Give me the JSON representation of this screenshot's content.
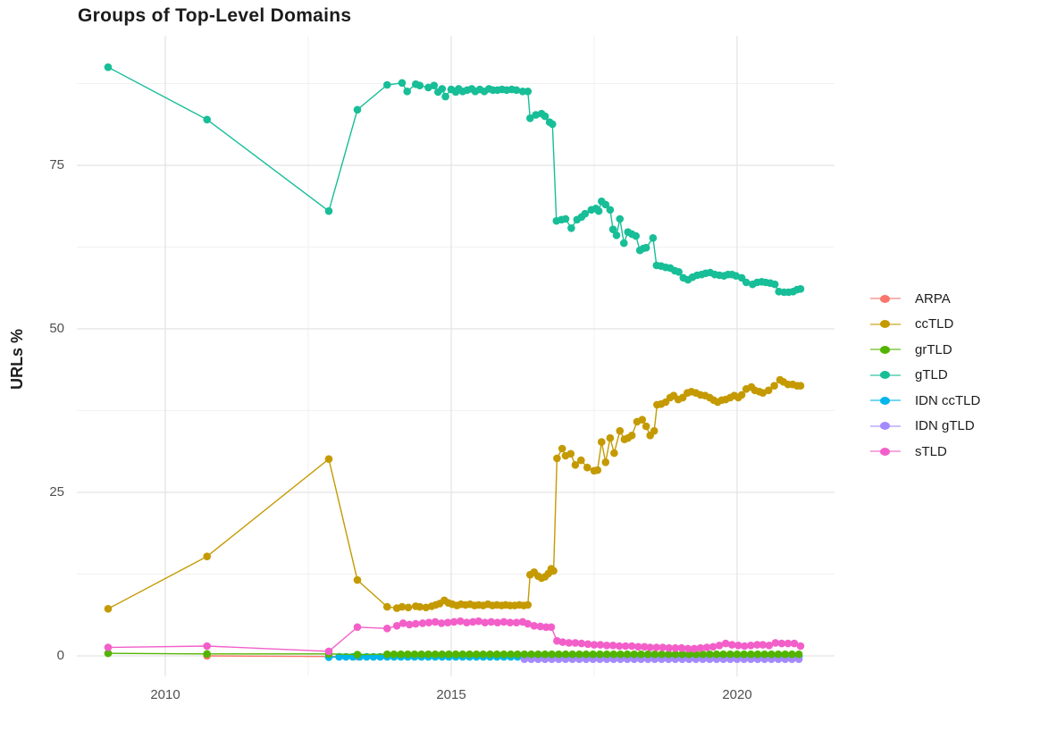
{
  "title": "Groups of Top-Level Domains",
  "y_axis": {
    "title": "URLs %",
    "ticks": [
      {
        "label": "0",
        "value": 0
      },
      {
        "label": "25",
        "value": 25
      },
      {
        "label": "50",
        "value": 50
      },
      {
        "label": "75",
        "value": 75
      }
    ],
    "minor": [
      12.5,
      37.5,
      62.5,
      87.5
    ]
  },
  "x_axis": {
    "ticks": [
      {
        "label": "2010",
        "value": 2010
      },
      {
        "label": "2015",
        "value": 2015
      },
      {
        "label": "2020",
        "value": 2020
      }
    ],
    "minor": [
      2012.5,
      2017.5
    ]
  },
  "legend": {
    "position": "right",
    "items": [
      {
        "label": "ARPA"
      },
      {
        "label": "ccTLD"
      },
      {
        "label": "grTLD"
      },
      {
        "label": "gTLD"
      },
      {
        "label": "IDN ccTLD"
      },
      {
        "label": "IDN gTLD"
      },
      {
        "label": "sTLD"
      }
    ]
  },
  "colors": {
    "grid_major": "#e3e3e3",
    "grid_minor": "#f1f1f1",
    "text_dark": "#1c1c1c",
    "text_tick": "#4f4f4f"
  },
  "chart_data": {
    "type": "line",
    "title": "Groups of Top-Level Domains",
    "xlabel": "",
    "ylabel": "URLs %",
    "xlim": [
      2008.4,
      2021.7
    ],
    "ylim": [
      -3,
      94
    ],
    "grid": true,
    "legend_position": "right",
    "draw_order": [
      "ARPA",
      "IDN ccTLD",
      "IDN gTLD",
      "grTLD",
      "ccTLD",
      "gTLD",
      "sTLD"
    ],
    "series": [
      {
        "name": "ARPA",
        "color": "#F8766D",
        "points": [
          [
            2010.73,
            0.0
          ],
          [
            2012.86,
            -0.1
          ],
          [
            2013.36,
            -0.1
          ],
          [
            2013.88,
            -0.1
          ]
        ]
      },
      {
        "name": "ccTLD",
        "color": "#C49A00",
        "points": [
          [
            2009.0,
            7.2
          ],
          [
            2010.73,
            15.2
          ],
          [
            2012.86,
            30.1
          ],
          [
            2013.36,
            11.6
          ],
          [
            2013.88,
            7.5
          ],
          [
            2014.05,
            7.3
          ],
          [
            2014.14,
            7.5
          ],
          [
            2014.25,
            7.4
          ],
          [
            2014.38,
            7.6
          ],
          [
            2014.45,
            7.5
          ],
          [
            2014.56,
            7.4
          ],
          [
            2014.66,
            7.6
          ],
          [
            2014.73,
            7.8
          ],
          [
            2014.8,
            8.0
          ],
          [
            2014.88,
            8.5
          ],
          [
            2014.95,
            8.1
          ],
          [
            2015.02,
            7.9
          ],
          [
            2015.1,
            7.7
          ],
          [
            2015.17,
            7.9
          ],
          [
            2015.25,
            7.8
          ],
          [
            2015.33,
            7.9
          ],
          [
            2015.41,
            7.7
          ],
          [
            2015.48,
            7.8
          ],
          [
            2015.56,
            7.7
          ],
          [
            2015.64,
            7.9
          ],
          [
            2015.72,
            7.7
          ],
          [
            2015.8,
            7.8
          ],
          [
            2015.88,
            7.7
          ],
          [
            2015.95,
            7.8
          ],
          [
            2016.03,
            7.7
          ],
          [
            2016.11,
            7.7
          ],
          [
            2016.19,
            7.8
          ],
          [
            2016.27,
            7.7
          ],
          [
            2016.34,
            7.8
          ],
          [
            2016.38,
            12.4
          ],
          [
            2016.45,
            12.8
          ],
          [
            2016.52,
            12.2
          ],
          [
            2016.58,
            11.9
          ],
          [
            2016.64,
            12.1
          ],
          [
            2016.7,
            12.6
          ],
          [
            2016.75,
            13.3
          ],
          [
            2016.79,
            13.0
          ],
          [
            2016.85,
            30.2
          ],
          [
            2016.94,
            31.7
          ],
          [
            2017.0,
            30.6
          ],
          [
            2017.09,
            30.9
          ],
          [
            2017.17,
            29.2
          ],
          [
            2017.27,
            29.9
          ],
          [
            2017.38,
            28.8
          ],
          [
            2017.5,
            28.3
          ],
          [
            2017.56,
            28.4
          ],
          [
            2017.63,
            32.7
          ],
          [
            2017.7,
            29.6
          ],
          [
            2017.78,
            33.3
          ],
          [
            2017.85,
            31.0
          ],
          [
            2017.95,
            34.4
          ],
          [
            2018.03,
            33.1
          ],
          [
            2018.09,
            33.3
          ],
          [
            2018.16,
            33.7
          ],
          [
            2018.25,
            35.8
          ],
          [
            2018.34,
            36.1
          ],
          [
            2018.41,
            35.1
          ],
          [
            2018.48,
            33.7
          ],
          [
            2018.55,
            34.4
          ],
          [
            2018.6,
            38.4
          ],
          [
            2018.67,
            38.5
          ],
          [
            2018.75,
            38.8
          ],
          [
            2018.83,
            39.5
          ],
          [
            2018.89,
            39.8
          ],
          [
            2018.97,
            39.2
          ],
          [
            2019.05,
            39.5
          ],
          [
            2019.13,
            40.2
          ],
          [
            2019.2,
            40.4
          ],
          [
            2019.28,
            40.2
          ],
          [
            2019.36,
            39.9
          ],
          [
            2019.44,
            39.8
          ],
          [
            2019.52,
            39.5
          ],
          [
            2019.59,
            39.1
          ],
          [
            2019.66,
            38.8
          ],
          [
            2019.73,
            39.1
          ],
          [
            2019.8,
            39.2
          ],
          [
            2019.88,
            39.5
          ],
          [
            2019.95,
            39.8
          ],
          [
            2020.02,
            39.5
          ],
          [
            2020.08,
            39.9
          ],
          [
            2020.16,
            40.8
          ],
          [
            2020.25,
            41.1
          ],
          [
            2020.31,
            40.6
          ],
          [
            2020.39,
            40.4
          ],
          [
            2020.45,
            40.2
          ],
          [
            2020.55,
            40.6
          ],
          [
            2020.65,
            41.3
          ],
          [
            2020.75,
            42.2
          ],
          [
            2020.81,
            41.9
          ],
          [
            2020.89,
            41.5
          ],
          [
            2020.97,
            41.5
          ],
          [
            2021.05,
            41.3
          ],
          [
            2021.11,
            41.3
          ]
        ]
      },
      {
        "name": "grTLD",
        "color": "#53B400",
        "points": [
          [
            2009.0,
            0.4
          ],
          [
            2010.73,
            0.3
          ],
          [
            2012.86,
            0.3
          ],
          [
            2013.36,
            0.2
          ]
        ],
        "run": {
          "from": 2013.88,
          "to": 2021.1,
          "step": 0.12,
          "value": 0.25
        }
      },
      {
        "name": "gTLD",
        "color": "#17BE97",
        "points": [
          [
            2009.0,
            90.0
          ],
          [
            2010.73,
            82.0
          ],
          [
            2012.86,
            68.0
          ],
          [
            2013.36,
            83.5
          ],
          [
            2013.88,
            87.3
          ],
          [
            2014.14,
            87.6
          ],
          [
            2014.23,
            86.3
          ],
          [
            2014.38,
            87.4
          ],
          [
            2014.45,
            87.2
          ],
          [
            2014.6,
            86.9
          ],
          [
            2014.7,
            87.2
          ],
          [
            2014.77,
            86.2
          ],
          [
            2014.84,
            86.7
          ],
          [
            2014.9,
            85.5
          ],
          [
            2015.0,
            86.6
          ],
          [
            2015.08,
            86.2
          ],
          [
            2015.13,
            86.7
          ],
          [
            2015.2,
            86.3
          ],
          [
            2015.28,
            86.5
          ],
          [
            2015.36,
            86.7
          ],
          [
            2015.42,
            86.3
          ],
          [
            2015.5,
            86.6
          ],
          [
            2015.58,
            86.3
          ],
          [
            2015.66,
            86.7
          ],
          [
            2015.73,
            86.5
          ],
          [
            2015.81,
            86.5
          ],
          [
            2015.89,
            86.6
          ],
          [
            2015.97,
            86.5
          ],
          [
            2016.06,
            86.6
          ],
          [
            2016.14,
            86.5
          ],
          [
            2016.25,
            86.3
          ],
          [
            2016.34,
            86.3
          ],
          [
            2016.38,
            82.2
          ],
          [
            2016.48,
            82.7
          ],
          [
            2016.58,
            82.9
          ],
          [
            2016.64,
            82.5
          ],
          [
            2016.72,
            81.6
          ],
          [
            2016.77,
            81.3
          ],
          [
            2016.84,
            66.5
          ],
          [
            2016.93,
            66.7
          ],
          [
            2017.0,
            66.8
          ],
          [
            2017.1,
            65.4
          ],
          [
            2017.2,
            66.7
          ],
          [
            2017.28,
            67.1
          ],
          [
            2017.34,
            67.6
          ],
          [
            2017.45,
            68.2
          ],
          [
            2017.53,
            68.4
          ],
          [
            2017.58,
            68.0
          ],
          [
            2017.63,
            69.5
          ],
          [
            2017.7,
            69.0
          ],
          [
            2017.78,
            68.2
          ],
          [
            2017.83,
            65.2
          ],
          [
            2017.89,
            64.3
          ],
          [
            2017.95,
            66.8
          ],
          [
            2018.02,
            63.1
          ],
          [
            2018.09,
            64.8
          ],
          [
            2018.16,
            64.5
          ],
          [
            2018.23,
            64.2
          ],
          [
            2018.3,
            62.0
          ],
          [
            2018.36,
            62.3
          ],
          [
            2018.41,
            62.4
          ],
          [
            2018.53,
            63.9
          ],
          [
            2018.59,
            59.7
          ],
          [
            2018.67,
            59.6
          ],
          [
            2018.75,
            59.4
          ],
          [
            2018.83,
            59.3
          ],
          [
            2018.91,
            58.9
          ],
          [
            2018.98,
            58.7
          ],
          [
            2019.06,
            57.8
          ],
          [
            2019.14,
            57.5
          ],
          [
            2019.22,
            57.9
          ],
          [
            2019.3,
            58.2
          ],
          [
            2019.38,
            58.3
          ],
          [
            2019.45,
            58.5
          ],
          [
            2019.53,
            58.6
          ],
          [
            2019.61,
            58.3
          ],
          [
            2019.69,
            58.2
          ],
          [
            2019.77,
            58.1
          ],
          [
            2019.84,
            58.3
          ],
          [
            2019.91,
            58.3
          ],
          [
            2019.98,
            58.1
          ],
          [
            2020.08,
            57.8
          ],
          [
            2020.16,
            57.1
          ],
          [
            2020.27,
            56.8
          ],
          [
            2020.35,
            57.1
          ],
          [
            2020.43,
            57.2
          ],
          [
            2020.5,
            57.1
          ],
          [
            2020.58,
            57.0
          ],
          [
            2020.66,
            56.8
          ],
          [
            2020.73,
            55.7
          ],
          [
            2020.82,
            55.6
          ],
          [
            2020.9,
            55.6
          ],
          [
            2020.98,
            55.7
          ],
          [
            2021.05,
            56.0
          ],
          [
            2021.11,
            56.1
          ]
        ]
      },
      {
        "name": "IDN ccTLD",
        "color": "#00B6EB",
        "points": [
          [
            2012.86,
            -0.2
          ]
        ],
        "run": {
          "from": 2013.04,
          "to": 2021.1,
          "step": 0.12,
          "value": -0.15
        }
      },
      {
        "name": "IDN gTLD",
        "color": "#A58AFF",
        "points": [],
        "run": {
          "from": 2016.28,
          "to": 2021.1,
          "step": 0.12,
          "value": -0.5
        }
      },
      {
        "name": "sTLD",
        "color": "#F35FC9",
        "points": [
          [
            2009.0,
            1.3
          ],
          [
            2010.73,
            1.5
          ],
          [
            2012.86,
            0.7
          ],
          [
            2013.36,
            4.4
          ],
          [
            2013.88,
            4.2
          ],
          [
            2014.05,
            4.6
          ],
          [
            2014.16,
            5.0
          ],
          [
            2014.27,
            4.8
          ],
          [
            2014.38,
            4.9
          ],
          [
            2014.5,
            5.0
          ],
          [
            2014.61,
            5.1
          ],
          [
            2014.72,
            5.2
          ],
          [
            2014.83,
            5.0
          ],
          [
            2014.94,
            5.1
          ],
          [
            2015.05,
            5.2
          ],
          [
            2015.16,
            5.3
          ],
          [
            2015.27,
            5.1
          ],
          [
            2015.38,
            5.2
          ],
          [
            2015.48,
            5.3
          ],
          [
            2015.59,
            5.1
          ],
          [
            2015.7,
            5.2
          ],
          [
            2015.81,
            5.1
          ],
          [
            2015.92,
            5.2
          ],
          [
            2016.03,
            5.1
          ],
          [
            2016.14,
            5.1
          ],
          [
            2016.25,
            5.2
          ],
          [
            2016.34,
            4.9
          ],
          [
            2016.45,
            4.6
          ],
          [
            2016.56,
            4.5
          ],
          [
            2016.66,
            4.4
          ],
          [
            2016.75,
            4.4
          ],
          [
            2016.85,
            2.3
          ],
          [
            2016.95,
            2.1
          ],
          [
            2017.06,
            2.0
          ],
          [
            2017.17,
            2.0
          ],
          [
            2017.28,
            1.9
          ],
          [
            2017.39,
            1.8
          ],
          [
            2017.5,
            1.7
          ],
          [
            2017.61,
            1.7
          ],
          [
            2017.72,
            1.6
          ],
          [
            2017.83,
            1.6
          ],
          [
            2017.94,
            1.5
          ],
          [
            2018.05,
            1.5
          ],
          [
            2018.16,
            1.5
          ],
          [
            2018.27,
            1.4
          ],
          [
            2018.38,
            1.4
          ],
          [
            2018.48,
            1.3
          ],
          [
            2018.59,
            1.3
          ],
          [
            2018.7,
            1.3
          ],
          [
            2018.81,
            1.2
          ],
          [
            2018.92,
            1.2
          ],
          [
            2019.03,
            1.2
          ],
          [
            2019.14,
            1.1
          ],
          [
            2019.25,
            1.1
          ],
          [
            2019.36,
            1.2
          ],
          [
            2019.47,
            1.3
          ],
          [
            2019.58,
            1.4
          ],
          [
            2019.69,
            1.6
          ],
          [
            2019.8,
            1.9
          ],
          [
            2019.91,
            1.7
          ],
          [
            2020.02,
            1.6
          ],
          [
            2020.13,
            1.5
          ],
          [
            2020.24,
            1.6
          ],
          [
            2020.35,
            1.7
          ],
          [
            2020.45,
            1.7
          ],
          [
            2020.56,
            1.6
          ],
          [
            2020.67,
            2.0
          ],
          [
            2020.78,
            1.9
          ],
          [
            2020.89,
            1.9
          ],
          [
            2021.0,
            1.9
          ],
          [
            2021.11,
            1.5
          ]
        ]
      }
    ]
  }
}
